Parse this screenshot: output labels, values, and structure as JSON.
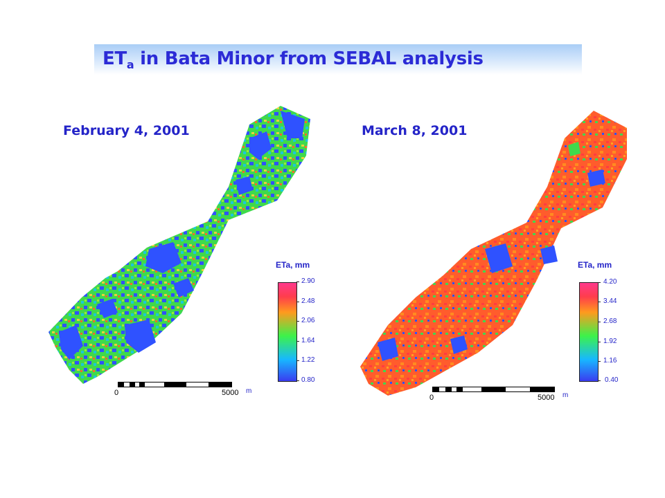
{
  "title": {
    "main": "ET",
    "sub": "a",
    "rest": " in Bata Minor from SEBAL analysis"
  },
  "panels": [
    {
      "date": "February 4, 2001",
      "legend_title": "ETa, mm",
      "legend_values": [
        "2.90",
        "2.48",
        "2.06",
        "1.64",
        "1.22",
        "0.80"
      ],
      "scale_start": "0",
      "scale_end": "5000",
      "scale_unit": "m",
      "dominant_colors": [
        "#2f52ff",
        "#45e24a",
        "#1cc8d8"
      ]
    },
    {
      "date": "March 8, 2001",
      "legend_title": "ETa, mm",
      "legend_values": [
        "4.20",
        "3.44",
        "2.68",
        "1.92",
        "1.16",
        "0.40"
      ],
      "scale_start": "0",
      "scale_end": "5000",
      "scale_unit": "m",
      "dominant_colors": [
        "#ff5a2a",
        "#ff8a1e",
        "#3a52ff"
      ]
    }
  ]
}
